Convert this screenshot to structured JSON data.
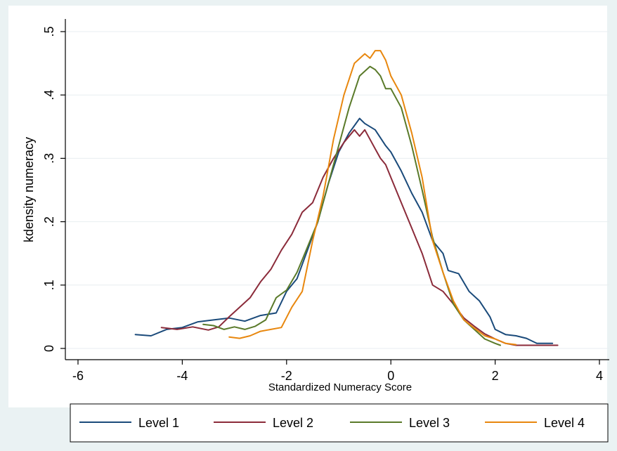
{
  "chart_data": {
    "type": "line",
    "title": "",
    "xlabel": "Standardized Numeracy Score",
    "ylabel": "kdensity numeracy",
    "xlim": [
      -6,
      4
    ],
    "ylim": [
      0,
      0.5
    ],
    "xticks": [
      -6,
      -4,
      -2,
      0,
      2,
      4
    ],
    "xtick_labels": [
      "-6",
      "-4",
      "-2",
      "0",
      "2",
      "4"
    ],
    "yticks": [
      0,
      0.1,
      0.2,
      0.3,
      0.4,
      0.5
    ],
    "ytick_labels": [
      "0",
      ".1",
      ".2",
      ".3",
      ".4",
      ".5"
    ],
    "grid": "horizontal",
    "legend_position": "bottom",
    "series": [
      {
        "name": "Level 1",
        "color": "#1a4a7a",
        "x": [
          -4.9,
          -4.6,
          -4.3,
          -4.0,
          -3.7,
          -3.4,
          -3.1,
          -2.8,
          -2.5,
          -2.2,
          -2.0,
          -1.8,
          -1.6,
          -1.4,
          -1.2,
          -1.0,
          -0.8,
          -0.6,
          -0.5,
          -0.3,
          -0.1,
          0.0,
          0.2,
          0.4,
          0.6,
          0.8,
          1.0,
          1.1,
          1.3,
          1.5,
          1.7,
          1.9,
          2.0,
          2.2,
          2.4,
          2.6,
          2.8,
          3.1
        ],
        "y": [
          0.022,
          0.02,
          0.03,
          0.033,
          0.042,
          0.045,
          0.048,
          0.043,
          0.052,
          0.056,
          0.09,
          0.11,
          0.155,
          0.2,
          0.26,
          0.31,
          0.34,
          0.363,
          0.355,
          0.345,
          0.32,
          0.31,
          0.28,
          0.245,
          0.215,
          0.17,
          0.15,
          0.123,
          0.118,
          0.09,
          0.075,
          0.05,
          0.03,
          0.022,
          0.02,
          0.016,
          0.008,
          0.008
        ]
      },
      {
        "name": "Level 2",
        "color": "#8b2b3a",
        "x": [
          -4.4,
          -4.1,
          -3.8,
          -3.5,
          -3.3,
          -3.1,
          -2.9,
          -2.7,
          -2.5,
          -2.3,
          -2.1,
          -1.9,
          -1.7,
          -1.5,
          -1.3,
          -1.1,
          -0.9,
          -0.7,
          -0.6,
          -0.5,
          -0.4,
          -0.3,
          -0.2,
          -0.1,
          0.0,
          0.2,
          0.4,
          0.6,
          0.8,
          1.0,
          1.2,
          1.4,
          1.6,
          1.8,
          2.0,
          2.2,
          2.4,
          2.7,
          3.2
        ],
        "y": [
          0.033,
          0.03,
          0.034,
          0.029,
          0.034,
          0.05,
          0.065,
          0.08,
          0.105,
          0.125,
          0.155,
          0.18,
          0.215,
          0.23,
          0.27,
          0.3,
          0.325,
          0.345,
          0.335,
          0.345,
          0.33,
          0.315,
          0.3,
          0.29,
          0.27,
          0.23,
          0.19,
          0.15,
          0.1,
          0.09,
          0.07,
          0.048,
          0.035,
          0.023,
          0.015,
          0.008,
          0.005,
          0.005,
          0.005
        ]
      },
      {
        "name": "Level 3",
        "color": "#5a7a2a",
        "x": [
          -3.6,
          -3.4,
          -3.2,
          -3.0,
          -2.8,
          -2.6,
          -2.4,
          -2.2,
          -2.0,
          -1.8,
          -1.6,
          -1.4,
          -1.2,
          -1.0,
          -0.8,
          -0.6,
          -0.4,
          -0.3,
          -0.2,
          -0.1,
          0.0,
          0.2,
          0.4,
          0.6,
          0.8,
          1.0,
          1.2,
          1.4,
          1.6,
          1.8,
          2.0,
          2.1
        ],
        "y": [
          0.038,
          0.036,
          0.03,
          0.034,
          0.03,
          0.035,
          0.045,
          0.08,
          0.092,
          0.12,
          0.16,
          0.2,
          0.26,
          0.32,
          0.38,
          0.43,
          0.445,
          0.44,
          0.43,
          0.41,
          0.41,
          0.38,
          0.32,
          0.25,
          0.175,
          0.12,
          0.07,
          0.045,
          0.03,
          0.015,
          0.008,
          0.005
        ]
      },
      {
        "name": "Level 4",
        "color": "#e8870e",
        "x": [
          -3.1,
          -2.9,
          -2.7,
          -2.5,
          -2.3,
          -2.1,
          -1.9,
          -1.7,
          -1.5,
          -1.3,
          -1.1,
          -0.9,
          -0.7,
          -0.5,
          -0.4,
          -0.3,
          -0.2,
          -0.1,
          0.0,
          0.2,
          0.4,
          0.6,
          0.8,
          1.0,
          1.2,
          1.4,
          1.6,
          1.8,
          2.0,
          2.2,
          2.4
        ],
        "y": [
          0.018,
          0.016,
          0.02,
          0.027,
          0.03,
          0.033,
          0.065,
          0.09,
          0.17,
          0.24,
          0.33,
          0.4,
          0.45,
          0.465,
          0.458,
          0.47,
          0.47,
          0.455,
          0.43,
          0.4,
          0.34,
          0.27,
          0.17,
          0.12,
          0.075,
          0.045,
          0.032,
          0.02,
          0.015,
          0.008,
          0.006
        ]
      }
    ]
  }
}
